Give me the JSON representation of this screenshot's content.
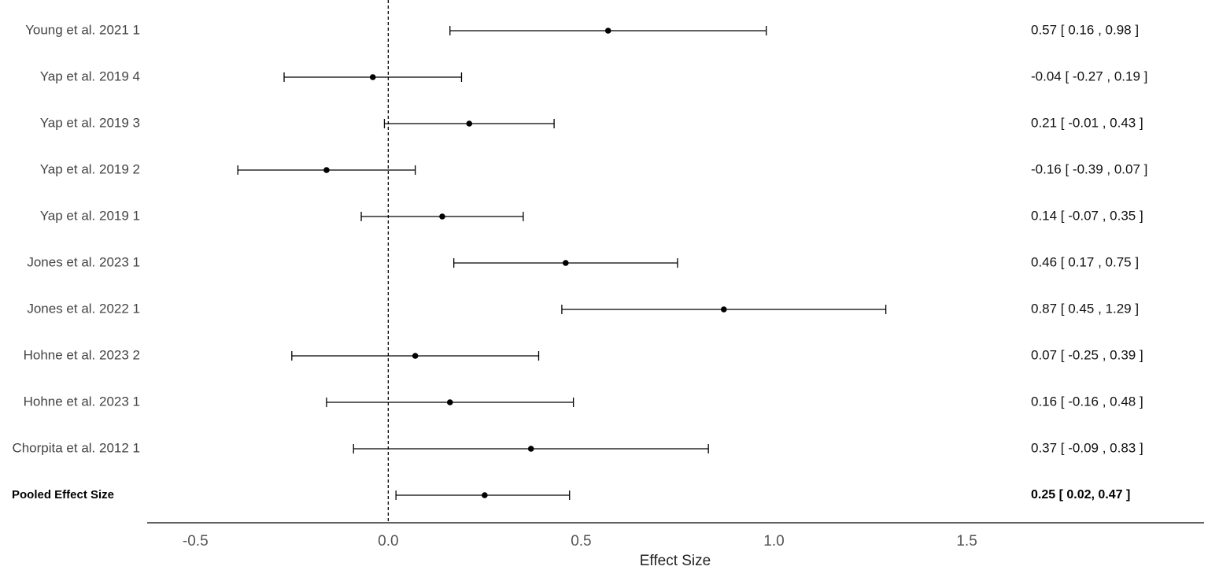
{
  "chart_data": {
    "type": "forest",
    "xlabel": "Effect Size",
    "categories": [
      "Young et al. 2021 1",
      "Yap et al. 2019 4",
      "Yap et al. 2019 3",
      "Yap et al. 2019 2",
      "Yap et al. 2019 1",
      "Jones et al. 2023 1",
      "Jones et al. 2022 1",
      "Hohne et al. 2023 2",
      "Hohne et al. 2023 1",
      "Chorpita et al. 2012 1",
      "Pooled Effect Size"
    ],
    "values": [
      0.57,
      -0.04,
      0.21,
      -0.16,
      0.14,
      0.46,
      0.87,
      0.07,
      0.16,
      0.37,
      0.25
    ],
    "lower": [
      0.16,
      -0.27,
      -0.01,
      -0.39,
      -0.07,
      0.17,
      0.45,
      -0.25,
      -0.16,
      -0.09,
      0.02
    ],
    "upper": [
      0.98,
      0.19,
      0.43,
      0.07,
      0.35,
      0.75,
      1.29,
      0.39,
      0.48,
      0.83,
      0.47
    ],
    "value_labels": [
      "0.57  [ 0.16 ,  0.98 ]",
      "-0.04  [ -0.27 ,  0.19 ]",
      "0.21  [ -0.01 ,  0.43 ]",
      "-0.16  [ -0.39 ,  0.07 ]",
      "0.14  [ -0.07 ,  0.35 ]",
      "0.46  [ 0.17 ,  0.75 ]",
      "0.87  [ 0.45 ,  1.29 ]",
      "0.07  [ -0.25 ,  0.39 ]",
      "0.16  [ -0.16 ,  0.48 ]",
      "0.37  [ -0.09 ,  0.83 ]",
      "0.25 [ 0.02, 0.47 ]"
    ],
    "xlim": [
      -0.625,
      2.115
    ],
    "xticks": [
      -0.5,
      {
        "value": 0,
        "label": "0.0"
      },
      0.5,
      {
        "value": 1,
        "label": "1.0"
      },
      1.5
    ],
    "reference_line": 0,
    "color": "#000000"
  }
}
